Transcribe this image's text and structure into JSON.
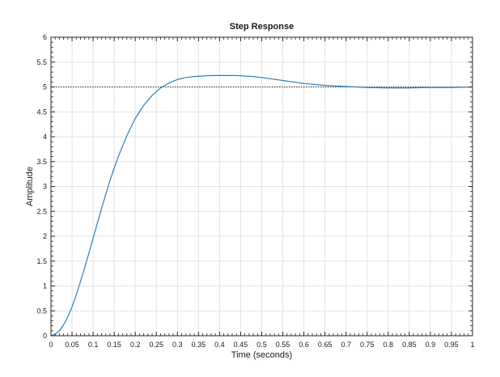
{
  "chart_data": {
    "type": "line",
    "title": "Step Response",
    "xlabel": "Time (seconds)",
    "ylabel": "Amplitude",
    "xlim": [
      0,
      1
    ],
    "ylim": [
      0,
      6
    ],
    "xticks": [
      "0",
      "0.05",
      "0.1",
      "0.15",
      "0.2",
      "0.25",
      "0.3",
      "0.35",
      "0.4",
      "0.45",
      "0.5",
      "0.55",
      "0.6",
      "0.65",
      "0.7",
      "0.75",
      "0.8",
      "0.85",
      "0.9",
      "0.95",
      "1"
    ],
    "yticks": [
      "0",
      "0.5",
      "1",
      "1.5",
      "2",
      "2.5",
      "3",
      "3.5",
      "4",
      "4.5",
      "5",
      "5.5",
      "6"
    ],
    "grid": true,
    "steady_state_value": 5,
    "series": [
      {
        "color": "#2f7fbf",
        "x": [
          0,
          0.01,
          0.02,
          0.03,
          0.04,
          0.05,
          0.06,
          0.07,
          0.08,
          0.09,
          0.1,
          0.12,
          0.14,
          0.16,
          0.18,
          0.2,
          0.22,
          0.24,
          0.26,
          0.28,
          0.3,
          0.32,
          0.34,
          0.36,
          0.38,
          0.4,
          0.42,
          0.44,
          0.46,
          0.48,
          0.5,
          0.55,
          0.6,
          0.65,
          0.7,
          0.75,
          0.8,
          0.85,
          0.9,
          0.95,
          1.0
        ],
        "y": [
          0,
          0.03,
          0.1,
          0.22,
          0.38,
          0.58,
          0.82,
          1.09,
          1.37,
          1.66,
          1.96,
          2.56,
          3.12,
          3.61,
          4.02,
          4.37,
          4.63,
          4.83,
          4.98,
          5.08,
          5.15,
          5.19,
          5.21,
          5.22,
          5.23,
          5.23,
          5.23,
          5.23,
          5.22,
          5.21,
          5.19,
          5.13,
          5.07,
          5.03,
          5.01,
          4.99,
          4.98,
          4.98,
          4.99,
          4.99,
          5.0
        ]
      }
    ]
  }
}
